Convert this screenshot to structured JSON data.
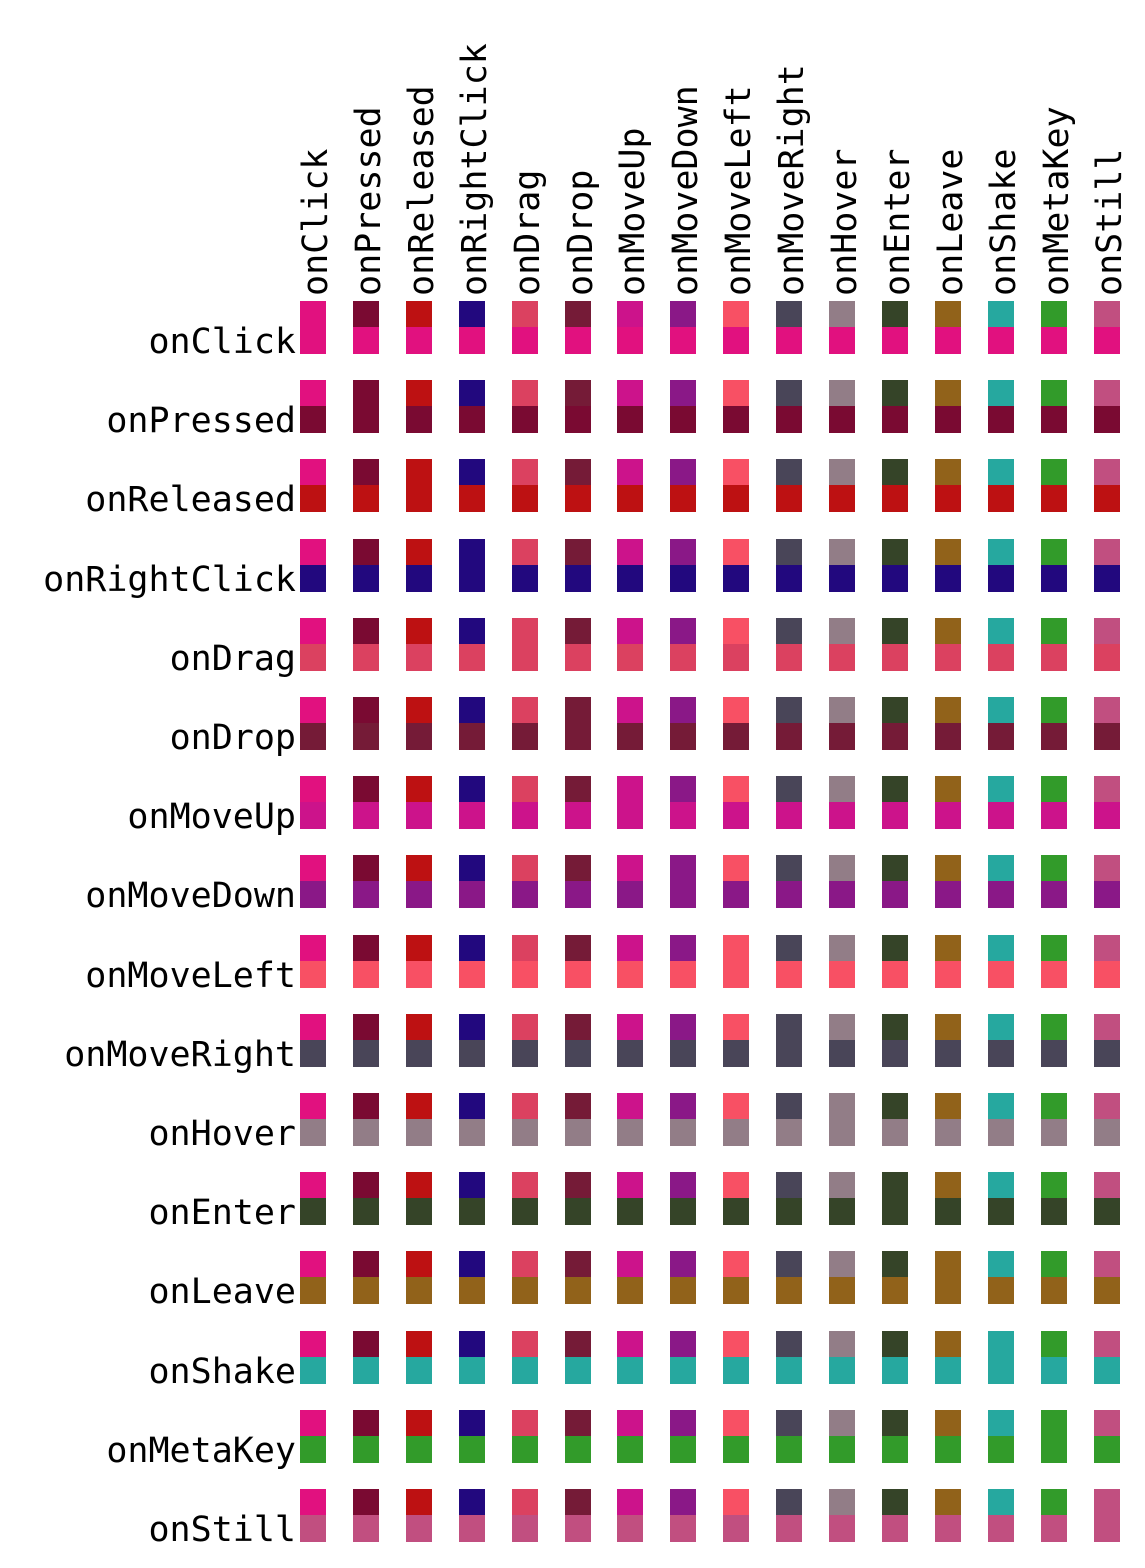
{
  "events": [
    {
      "label": "onClick",
      "color": "#e1117f"
    },
    {
      "label": "onPressed",
      "color": "#7a0a32"
    },
    {
      "label": "onReleased",
      "color": "#bd1112"
    },
    {
      "label": "onRightClick",
      "color": "#22087e"
    },
    {
      "label": "onDrag",
      "color": "#db4160"
    },
    {
      "label": "onDrop",
      "color": "#751b37"
    },
    {
      "label": "onMoveUp",
      "color": "#cc138b"
    },
    {
      "label": "onMoveDown",
      "color": "#8a1887"
    },
    {
      "label": "onMoveLeft",
      "color": "#f85064"
    },
    {
      "label": "onMoveRight",
      "color": "#494558"
    },
    {
      "label": "onHover",
      "color": "#927d87"
    },
    {
      "label": "onEnter",
      "color": "#354428"
    },
    {
      "label": "onLeave",
      "color": "#91621a"
    },
    {
      "label": "onShake",
      "color": "#26a89f"
    },
    {
      "label": "onMetaKey",
      "color": "#329b2a"
    },
    {
      "label": "onStill",
      "color": "#c14f80"
    }
  ]
}
